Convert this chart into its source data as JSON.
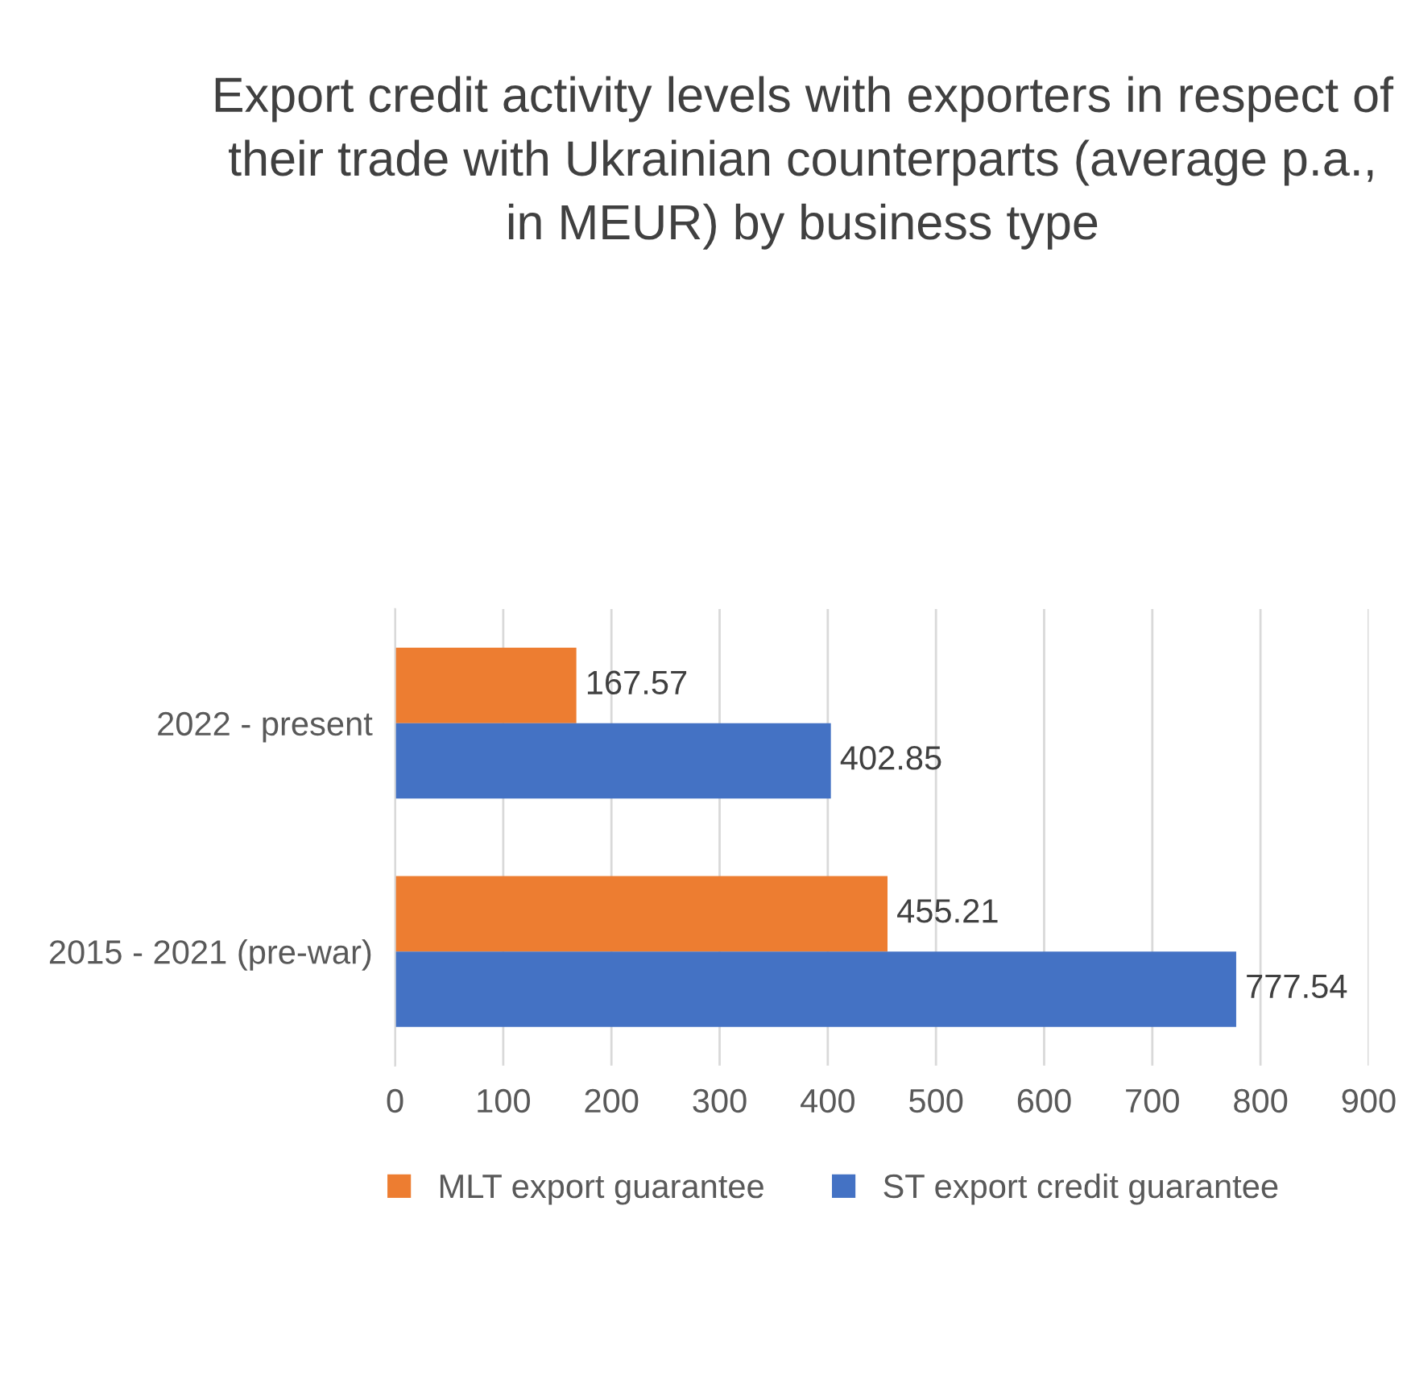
{
  "chart_data": {
    "type": "bar",
    "orientation": "horizontal",
    "title": "Export credit activity levels with exporters in respect of their trade with Ukrainian counterparts (average p.a., in MEUR) by business type",
    "categories": [
      "2022 - present",
      "2015 - 2021 (pre-war)"
    ],
    "series": [
      {
        "name": "MLT export guarantee",
        "color": "#ed7d31",
        "values": [
          167.57,
          455.21
        ]
      },
      {
        "name": "ST export credit guarantee",
        "color": "#4472c4",
        "values": [
          402.85,
          777.54
        ]
      }
    ],
    "xlim": [
      0,
      900
    ],
    "xticks": [
      0,
      100,
      200,
      300,
      400,
      500,
      600,
      700,
      800,
      900
    ],
    "grid": "x",
    "legend": "bottom",
    "data_labels": true
  }
}
